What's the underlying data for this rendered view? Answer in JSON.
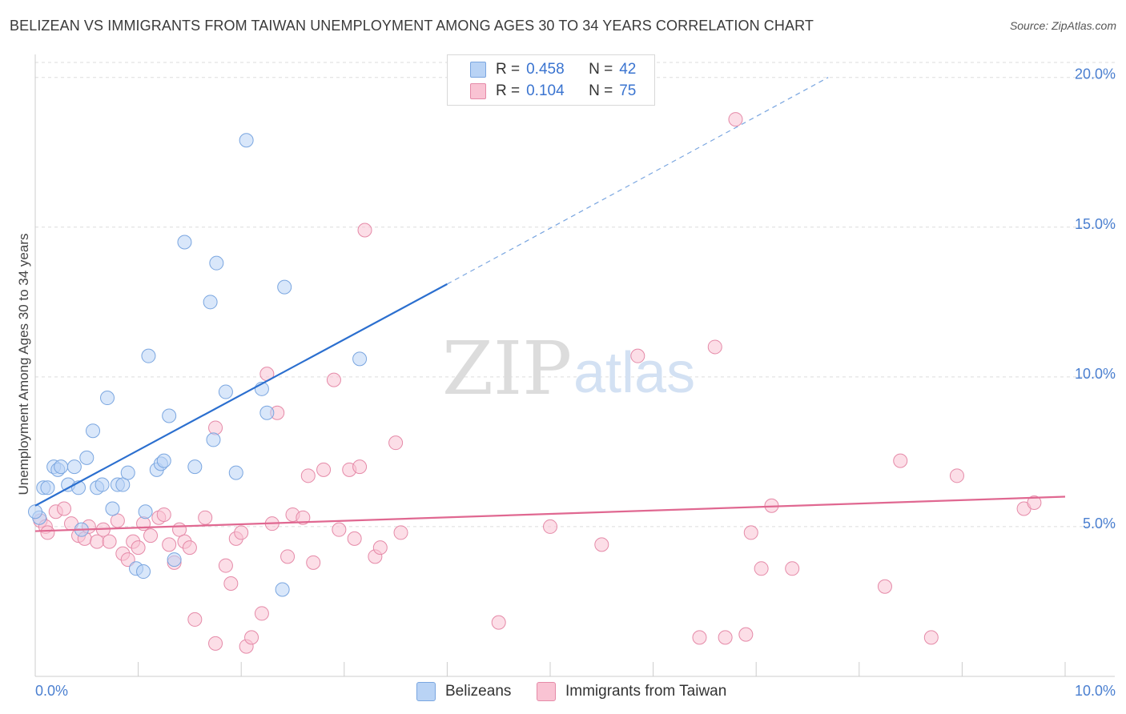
{
  "header": {
    "title": "BELIZEAN VS IMMIGRANTS FROM TAIWAN UNEMPLOYMENT AMONG AGES 30 TO 34 YEARS CORRELATION CHART",
    "source": "Source: ZipAtlas.com"
  },
  "watermark": {
    "zip": "ZIP",
    "atlas": "atlas"
  },
  "legend": {
    "r_label": "R =",
    "n_label": "N =",
    "series1": {
      "r": "0.458",
      "n": "42"
    },
    "series2": {
      "r": "0.104",
      "n": "75"
    }
  },
  "colors": {
    "blue_fill": "#b9d3f5",
    "blue_stroke": "#7aa6e0",
    "blue_line": "#2b6fcf",
    "pink_fill": "#f9c3d3",
    "pink_stroke": "#e58aa8",
    "pink_line": "#e06891",
    "tick_text": "#4a7fd0",
    "grid": "#dddddd"
  },
  "chart_data": {
    "type": "scatter",
    "title": "BELIZEAN VS IMMIGRANTS FROM TAIWAN UNEMPLOYMENT AMONG AGES 30 TO 34 YEARS CORRELATION CHART",
    "xlabel": "",
    "ylabel": "Unemployment Among Ages 30 to 34 years",
    "xlim": [
      0,
      10
    ],
    "ylim": [
      0,
      20.5
    ],
    "x_tick_labels": {
      "left": "0.0%",
      "right": "10.0%"
    },
    "y_ticks": [
      {
        "value": 5,
        "label": "5.0%"
      },
      {
        "value": 10,
        "label": "10.0%"
      },
      {
        "value": 15,
        "label": "15.0%"
      },
      {
        "value": 20,
        "label": "20.0%"
      }
    ],
    "legend_position": "top-center",
    "series": [
      {
        "name": "Belizeans",
        "color": "#7aa6e0",
        "trend": {
          "x0": 0.0,
          "y0": 5.7,
          "x1": 4.0,
          "y1": 13.1,
          "dash_to_x": 7.7,
          "dash_to_y": 20.0
        },
        "points": [
          [
            0.08,
            6.3
          ],
          [
            0.12,
            6.3
          ],
          [
            0.18,
            7.0
          ],
          [
            0.22,
            6.9
          ],
          [
            0.25,
            7.0
          ],
          [
            0.32,
            6.4
          ],
          [
            0.38,
            7.0
          ],
          [
            0.42,
            6.3
          ],
          [
            0.5,
            7.3
          ],
          [
            0.56,
            8.2
          ],
          [
            0.6,
            6.3
          ],
          [
            0.65,
            6.4
          ],
          [
            0.7,
            9.3
          ],
          [
            0.75,
            5.6
          ],
          [
            0.8,
            6.4
          ],
          [
            0.85,
            6.4
          ],
          [
            0.9,
            6.8
          ],
          [
            0.98,
            3.6
          ],
          [
            1.05,
            3.5
          ],
          [
            1.07,
            5.5
          ],
          [
            1.1,
            10.7
          ],
          [
            1.18,
            6.9
          ],
          [
            1.22,
            7.1
          ],
          [
            1.25,
            7.2
          ],
          [
            1.3,
            8.7
          ],
          [
            1.35,
            3.9
          ],
          [
            1.45,
            14.5
          ],
          [
            1.55,
            7.0
          ],
          [
            1.7,
            12.5
          ],
          [
            1.73,
            7.9
          ],
          [
            1.76,
            13.8
          ],
          [
            1.85,
            9.5
          ],
          [
            1.95,
            6.8
          ],
          [
            2.05,
            17.9
          ],
          [
            2.2,
            9.6
          ],
          [
            2.25,
            8.8
          ],
          [
            2.42,
            13.0
          ],
          [
            2.4,
            2.9
          ],
          [
            3.15,
            10.6
          ],
          [
            0.45,
            4.9
          ],
          [
            0.04,
            5.3
          ],
          [
            0.0,
            5.5
          ]
        ]
      },
      {
        "name": "Immigrants from Taiwan",
        "color": "#e58aa8",
        "trend": {
          "x0": 0.0,
          "y0": 4.85,
          "x1": 10.0,
          "y1": 6.0
        },
        "points": [
          [
            0.05,
            5.2
          ],
          [
            0.1,
            5.0
          ],
          [
            0.12,
            4.8
          ],
          [
            0.2,
            5.5
          ],
          [
            0.28,
            5.6
          ],
          [
            0.35,
            5.1
          ],
          [
            0.42,
            4.7
          ],
          [
            0.48,
            4.6
          ],
          [
            0.52,
            5.0
          ],
          [
            0.6,
            4.5
          ],
          [
            0.66,
            4.9
          ],
          [
            0.72,
            4.5
          ],
          [
            0.8,
            5.2
          ],
          [
            0.85,
            4.1
          ],
          [
            0.9,
            3.9
          ],
          [
            0.95,
            4.5
          ],
          [
            1.0,
            4.3
          ],
          [
            1.05,
            5.1
          ],
          [
            1.12,
            4.7
          ],
          [
            1.2,
            5.3
          ],
          [
            1.25,
            5.4
          ],
          [
            1.3,
            4.4
          ],
          [
            1.35,
            3.8
          ],
          [
            1.4,
            4.9
          ],
          [
            1.45,
            4.5
          ],
          [
            1.5,
            4.3
          ],
          [
            1.55,
            1.9
          ],
          [
            1.65,
            5.3
          ],
          [
            1.75,
            1.1
          ],
          [
            1.75,
            8.3
          ],
          [
            1.85,
            3.7
          ],
          [
            1.9,
            3.1
          ],
          [
            1.95,
            4.6
          ],
          [
            2.0,
            4.8
          ],
          [
            2.05,
            1.0
          ],
          [
            2.1,
            1.3
          ],
          [
            2.2,
            2.1
          ],
          [
            2.25,
            10.1
          ],
          [
            2.3,
            5.1
          ],
          [
            2.35,
            8.8
          ],
          [
            2.45,
            4.0
          ],
          [
            2.5,
            5.4
          ],
          [
            2.6,
            5.3
          ],
          [
            2.65,
            6.7
          ],
          [
            2.7,
            3.8
          ],
          [
            2.8,
            6.9
          ],
          [
            2.9,
            9.9
          ],
          [
            2.95,
            4.9
          ],
          [
            3.05,
            6.9
          ],
          [
            3.1,
            4.6
          ],
          [
            3.15,
            7.0
          ],
          [
            3.2,
            14.9
          ],
          [
            3.3,
            4.0
          ],
          [
            3.35,
            4.3
          ],
          [
            3.5,
            7.8
          ],
          [
            3.55,
            4.8
          ],
          [
            4.5,
            1.8
          ],
          [
            5.0,
            5.0
          ],
          [
            5.5,
            4.4
          ],
          [
            5.85,
            10.7
          ],
          [
            6.45,
            1.3
          ],
          [
            6.6,
            11.0
          ],
          [
            6.7,
            1.3
          ],
          [
            6.8,
            18.6
          ],
          [
            6.9,
            1.4
          ],
          [
            6.95,
            4.8
          ],
          [
            7.05,
            3.6
          ],
          [
            7.15,
            5.7
          ],
          [
            7.35,
            3.6
          ],
          [
            8.25,
            3.0
          ],
          [
            8.4,
            7.2
          ],
          [
            8.7,
            1.3
          ],
          [
            8.95,
            6.7
          ],
          [
            9.6,
            5.6
          ],
          [
            9.7,
            5.8
          ]
        ]
      }
    ]
  },
  "bottom_legend": {
    "item1": "Belizeans",
    "item2": "Immigrants from Taiwan"
  }
}
